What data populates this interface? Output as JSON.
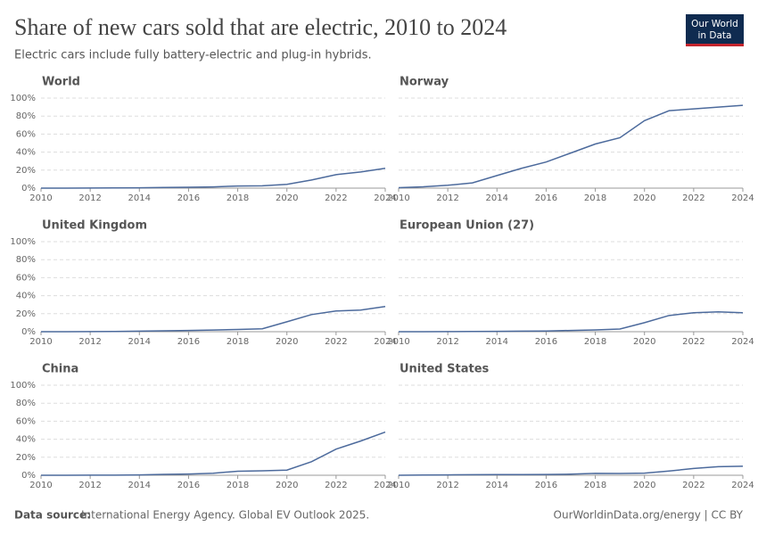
{
  "title": "Share of new cars sold that are electric, 2010 to 2024",
  "subtitle": "Electric cars include fully battery-electric and plug-in hybrids.",
  "logo": [
    "Our World",
    "in Data"
  ],
  "source_label": "Data source:",
  "source": "International Energy Agency. Global EV Outlook 2025.",
  "credit": "OurWorldinData.org/energy | CC BY",
  "chart_data": [
    {
      "type": "line",
      "title": "World",
      "color": "#4c6a9c",
      "x": [
        2010,
        2011,
        2012,
        2013,
        2014,
        2015,
        2016,
        2017,
        2018,
        2019,
        2020,
        2021,
        2022,
        2023,
        2024
      ],
      "values": [
        0,
        0,
        0.1,
        0.2,
        0.4,
        0.7,
        1,
        1.4,
        2.4,
        2.6,
        4.2,
        9,
        15,
        18,
        22
      ],
      "xlim": [
        2010,
        2024
      ],
      "xticks": [
        2010,
        2012,
        2014,
        2016,
        2018,
        2020,
        2022,
        2024
      ],
      "ylim": [
        0,
        100
      ],
      "yticks": [
        {
          "value": 0,
          "label": "0%"
        },
        {
          "value": 20,
          "label": "20%"
        },
        {
          "value": 40,
          "label": "40%"
        },
        {
          "value": 60,
          "label": "60%"
        },
        {
          "value": 80,
          "label": "80%"
        },
        {
          "value": 100,
          "label": "100%"
        }
      ],
      "grid": true
    },
    {
      "type": "line",
      "title": "Norway",
      "color": "#4c6a9c",
      "x": [
        2010,
        2011,
        2012,
        2013,
        2014,
        2015,
        2016,
        2017,
        2018,
        2019,
        2020,
        2021,
        2022,
        2023,
        2024
      ],
      "values": [
        0.5,
        1.5,
        3.2,
        5.8,
        14,
        22,
        29,
        39,
        49,
        56,
        75,
        86,
        88,
        90,
        92
      ],
      "xlim": [
        2010,
        2024
      ],
      "xticks": [
        2010,
        2012,
        2014,
        2016,
        2018,
        2020,
        2022,
        2024
      ],
      "ylim": [
        0,
        100
      ],
      "yticks": [
        0,
        20,
        40,
        60,
        80,
        100
      ],
      "grid": true
    },
    {
      "type": "line",
      "title": "United Kingdom",
      "color": "#4c6a9c",
      "x": [
        2010,
        2011,
        2012,
        2013,
        2014,
        2015,
        2016,
        2017,
        2018,
        2019,
        2020,
        2021,
        2022,
        2023,
        2024
      ],
      "values": [
        0,
        0,
        0.1,
        0.2,
        0.6,
        1,
        1.3,
        1.8,
        2.5,
        3.2,
        11,
        19,
        23,
        24,
        28
      ],
      "xlim": [
        2010,
        2024
      ],
      "xticks": [
        2010,
        2012,
        2014,
        2016,
        2018,
        2020,
        2022,
        2024
      ],
      "ylim": [
        0,
        100
      ],
      "yticks": [
        {
          "value": 0,
          "label": "0%"
        },
        {
          "value": 20,
          "label": "20%"
        },
        {
          "value": 40,
          "label": "40%"
        },
        {
          "value": 60,
          "label": "60%"
        },
        {
          "value": 80,
          "label": "80%"
        },
        {
          "value": 100,
          "label": "100%"
        }
      ],
      "grid": true
    },
    {
      "type": "line",
      "title": "European Union (27)",
      "color": "#4c6a9c",
      "x": [
        2010,
        2011,
        2012,
        2013,
        2014,
        2015,
        2016,
        2017,
        2018,
        2019,
        2020,
        2021,
        2022,
        2023,
        2024
      ],
      "values": [
        0,
        0,
        0.1,
        0.2,
        0.4,
        0.6,
        0.8,
        1.4,
        2,
        3,
        10,
        18,
        21,
        22,
        21
      ],
      "xlim": [
        2010,
        2024
      ],
      "xticks": [
        2010,
        2012,
        2014,
        2016,
        2018,
        2020,
        2022,
        2024
      ],
      "ylim": [
        0,
        100
      ],
      "yticks": [
        0,
        20,
        40,
        60,
        80,
        100
      ],
      "grid": true
    },
    {
      "type": "line",
      "title": "China",
      "color": "#4c6a9c",
      "x": [
        2010,
        2011,
        2012,
        2013,
        2014,
        2015,
        2016,
        2017,
        2018,
        2019,
        2020,
        2021,
        2022,
        2023,
        2024
      ],
      "values": [
        0,
        0,
        0.1,
        0.1,
        0.4,
        1,
        1.4,
        2.2,
        4.5,
        4.9,
        5.7,
        15,
        29,
        38,
        48
      ],
      "xlim": [
        2010,
        2024
      ],
      "xticks": [
        2010,
        2012,
        2014,
        2016,
        2018,
        2020,
        2022,
        2024
      ],
      "ylim": [
        0,
        100
      ],
      "yticks": [
        {
          "value": 0,
          "label": "0%"
        },
        {
          "value": 20,
          "label": "20%"
        },
        {
          "value": 40,
          "label": "40%"
        },
        {
          "value": 60,
          "label": "60%"
        },
        {
          "value": 80,
          "label": "80%"
        },
        {
          "value": 100,
          "label": "100%"
        }
      ],
      "grid": true
    },
    {
      "type": "line",
      "title": "United States",
      "color": "#4c6a9c",
      "x": [
        2010,
        2011,
        2012,
        2013,
        2014,
        2015,
        2016,
        2017,
        2018,
        2019,
        2020,
        2021,
        2022,
        2023,
        2024
      ],
      "values": [
        0,
        0.2,
        0.4,
        0.6,
        0.7,
        0.7,
        0.9,
        1.2,
        2.1,
        2,
        2.3,
        4.7,
        7.5,
        9.5,
        10
      ],
      "xlim": [
        2010,
        2024
      ],
      "xticks": [
        2010,
        2012,
        2014,
        2016,
        2018,
        2020,
        2022,
        2024
      ],
      "ylim": [
        0,
        100
      ],
      "yticks": [
        0,
        20,
        40,
        60,
        80,
        100
      ],
      "grid": true
    }
  ]
}
